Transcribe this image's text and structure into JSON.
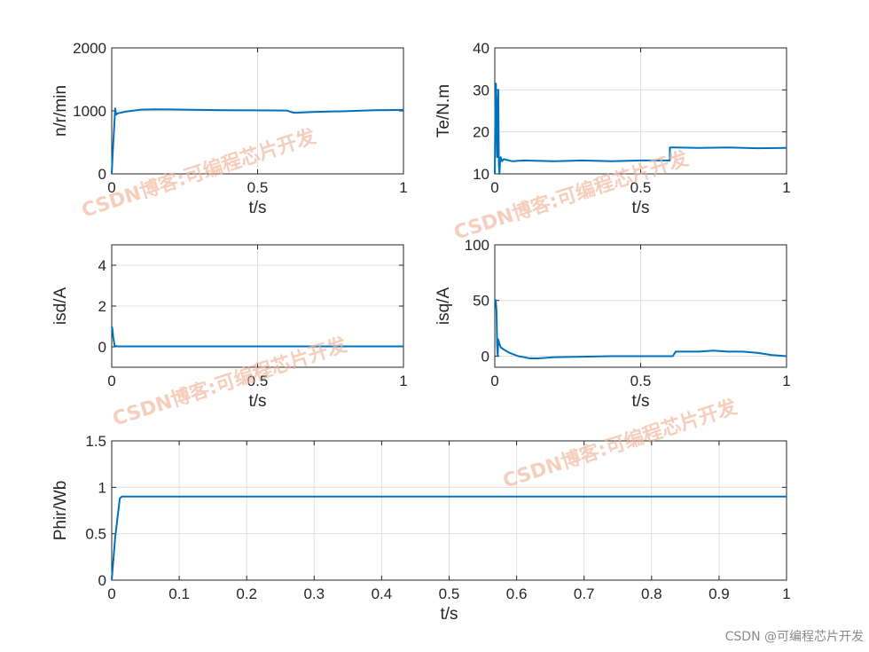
{
  "colors": {
    "series": "#0072bd",
    "grid": "#dfdfdf",
    "axis": "#262626",
    "watermark": "#f0b59a"
  },
  "watermark_text": "CSDN博客:可编程芯片开发",
  "footer_text": "CSDN @可编程芯片开发",
  "chart_data": [
    {
      "type": "line",
      "xlabel": "t/s",
      "ylabel": "n/r/min",
      "xlim": [
        0,
        1
      ],
      "ylim": [
        0,
        2000
      ],
      "xticks": [
        0,
        0.5,
        1
      ],
      "xtick_labels": [
        "0",
        "0.5",
        "1"
      ],
      "yticks": [
        0,
        1000,
        2000
      ],
      "ytick_labels": [
        "0",
        "1000",
        "2000"
      ],
      "grid": true,
      "series": [
        {
          "x": [
            0,
            0.003,
            0.008,
            0.012,
            0.015,
            0.02,
            0.05,
            0.1,
            0.15,
            0.2,
            0.3,
            0.4,
            0.5,
            0.6,
            0.61,
            0.62,
            0.63,
            0.7,
            0.8,
            0.9,
            1.0
          ],
          "y": [
            0,
            300,
            700,
            1040,
            940,
            960,
            990,
            1020,
            1025,
            1022,
            1015,
            1010,
            1008,
            1005,
            990,
            975,
            970,
            985,
            995,
            1010,
            1015
          ]
        }
      ]
    },
    {
      "type": "line",
      "xlabel": "t/s",
      "ylabel": "Te/N.m",
      "xlim": [
        0,
        1
      ],
      "ylim": [
        10,
        40
      ],
      "xticks": [
        0,
        0.5,
        1
      ],
      "xtick_labels": [
        "0",
        "0.5",
        "1"
      ],
      "yticks": [
        10,
        20,
        30,
        40
      ],
      "ytick_labels": [
        "10",
        "20",
        "30",
        "40"
      ],
      "grid": true,
      "series": [
        {
          "x": [
            0,
            0.002,
            0.004,
            0.006,
            0.008,
            0.01,
            0.012,
            0.014,
            0.016,
            0.018,
            0.02,
            0.025,
            0.03,
            0.06,
            0.1,
            0.2,
            0.3,
            0.4,
            0.5,
            0.6,
            0.6,
            0.62,
            0.7,
            0.8,
            0.9,
            1.0
          ],
          "y": [
            10,
            28,
            31.5,
            22,
            14,
            26,
            30,
            12,
            10,
            13,
            14,
            13,
            13.5,
            13,
            13.2,
            13,
            13.2,
            13,
            13.2,
            13.2,
            16.3,
            16.3,
            16.2,
            16.3,
            16.1,
            16.2
          ]
        }
      ]
    },
    {
      "type": "line",
      "xlabel": "t/s",
      "ylabel": "isd/A",
      "xlim": [
        0,
        1
      ],
      "ylim": [
        -1,
        5
      ],
      "xticks": [
        0,
        0.5,
        1
      ],
      "xtick_labels": [
        "0",
        "0.5",
        "1"
      ],
      "yticks": [
        0,
        2,
        4
      ],
      "ytick_labels": [
        "0",
        "2",
        "4"
      ],
      "grid": true,
      "series": [
        {
          "x": [
            0,
            0.002,
            0.005,
            0.01,
            0.02,
            0.1,
            0.3,
            0.5,
            0.7,
            0.9,
            1.0
          ],
          "y": [
            1.0,
            0.9,
            0.5,
            0.05,
            0.02,
            0.02,
            0.02,
            0.02,
            0.02,
            0.02,
            0.02
          ]
        }
      ]
    },
    {
      "type": "line",
      "xlabel": "t/s",
      "ylabel": "isq/A",
      "xlim": [
        0,
        1
      ],
      "ylim": [
        -10,
        100
      ],
      "xticks": [
        0,
        0.5,
        1
      ],
      "xtick_labels": [
        "0",
        "0.5",
        "1"
      ],
      "yticks": [
        0,
        50,
        100
      ],
      "ytick_labels": [
        "0",
        "50",
        "100"
      ],
      "grid": true,
      "series": [
        {
          "x": [
            0,
            0.003,
            0.006,
            0.008,
            0.01,
            0.012,
            0.015,
            0.02,
            0.03,
            0.05,
            0.08,
            0.1,
            0.12,
            0.15,
            0.2,
            0.3,
            0.4,
            0.5,
            0.6,
            0.61,
            0.62,
            0.7,
            0.75,
            0.8,
            0.85,
            0.9,
            0.95,
            1.0
          ],
          "y": [
            51,
            50,
            40,
            10,
            0,
            15,
            12,
            8,
            6,
            3,
            0,
            -1,
            -2,
            -2,
            -1,
            -0.5,
            0,
            0,
            0,
            0,
            4,
            4,
            5,
            4,
            4,
            3,
            1,
            0
          ]
        }
      ]
    },
    {
      "type": "line",
      "xlabel": "t/s",
      "ylabel": "Phir/Wb",
      "xlim": [
        0,
        1
      ],
      "ylim": [
        0,
        1.5
      ],
      "xticks": [
        0,
        0.1,
        0.2,
        0.3,
        0.4,
        0.5,
        0.6,
        0.7,
        0.8,
        0.9,
        1
      ],
      "xtick_labels": [
        "0",
        "0.1",
        "0.2",
        "0.3",
        "0.4",
        "0.5",
        "0.6",
        "0.7",
        "0.8",
        "0.9",
        "1"
      ],
      "yticks": [
        0,
        0.5,
        1,
        1.5
      ],
      "ytick_labels": [
        "0",
        "0.5",
        "1",
        "1.5"
      ],
      "grid": true,
      "series": [
        {
          "x": [
            0,
            0.005,
            0.012,
            0.015,
            0.1,
            0.2,
            0.3,
            0.4,
            0.5,
            0.6,
            0.7,
            0.8,
            0.9,
            1.0
          ],
          "y": [
            0,
            0.45,
            0.88,
            0.9,
            0.9,
            0.9,
            0.9,
            0.9,
            0.9,
            0.9,
            0.9,
            0.9,
            0.9,
            0.9
          ]
        }
      ]
    }
  ]
}
